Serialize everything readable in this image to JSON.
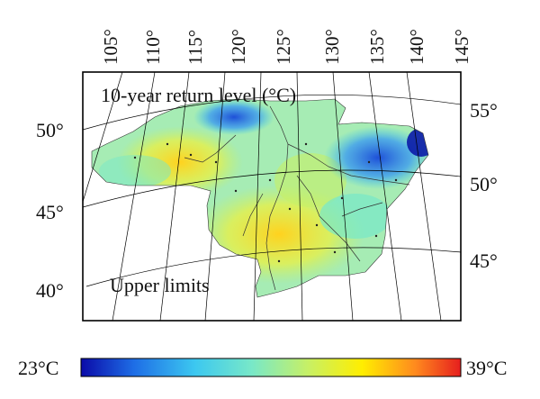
{
  "map": {
    "title": "10-year return level (°C)",
    "annotation": "Upper limits",
    "longitude_labels": [
      "105°",
      "110°",
      "115°",
      "120°",
      "125°",
      "130°",
      "135°",
      "140°",
      "145°"
    ],
    "latitude_labels_left": [
      "50°",
      "45°",
      "40°"
    ],
    "latitude_labels_right": [
      "55°",
      "50°",
      "45°"
    ],
    "graticule": true,
    "projection": "conic"
  },
  "colorbar": {
    "min_label": "23°C",
    "max_label": "39°C",
    "min": 23,
    "max": 39,
    "colors": [
      "#0a0aa8",
      "#1e6ee6",
      "#3cc8f0",
      "#78e8c8",
      "#c8f064",
      "#ffee00",
      "#ff8a1e",
      "#e61e1e"
    ]
  }
}
